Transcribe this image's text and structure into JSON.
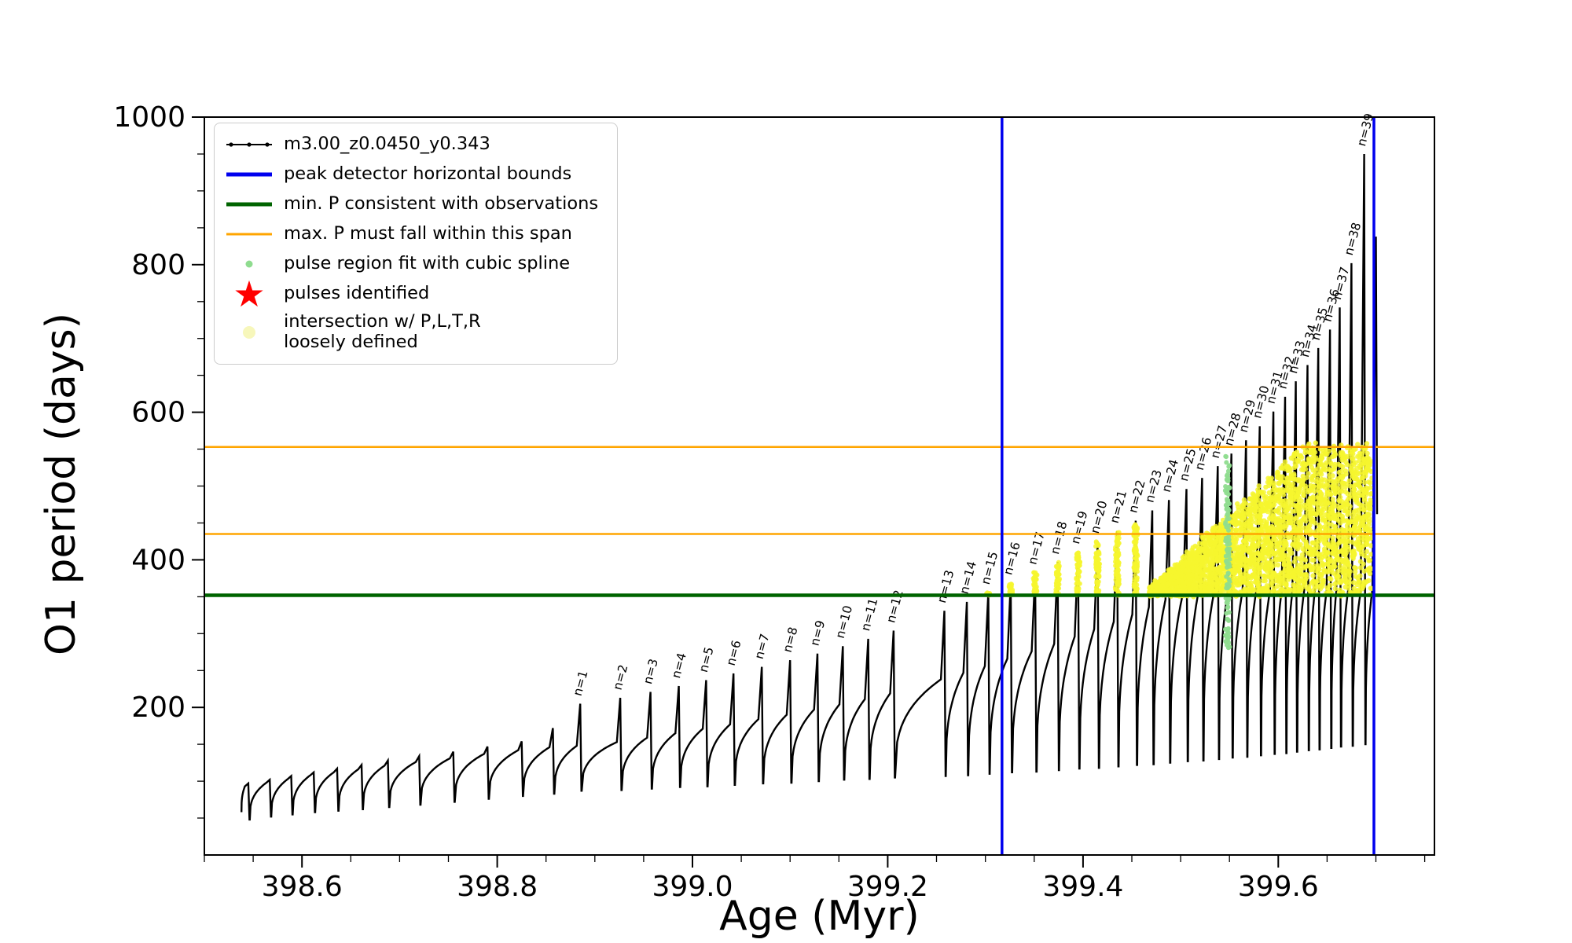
{
  "chart_data": {
    "type": "line",
    "title": "",
    "xlabel": "Age (Myr)",
    "ylabel": "O1 period (days)",
    "xlim": [
      398.5,
      399.76
    ],
    "ylim": [
      0,
      1000
    ],
    "xticks": [
      398.6,
      398.8,
      399.0,
      399.2,
      399.4,
      399.6
    ],
    "yticks": [
      200,
      400,
      600,
      800,
      1000
    ],
    "x_minor_step": 0.05,
    "y_minor_step": 50,
    "grid": false,
    "legend_position": "upper left",
    "colors": {
      "series": "#000000",
      "peak_bounds": "#0000ee",
      "min_p": "#006400",
      "max_p_span": "#ffa500",
      "spline_fit": "#8fdc8f",
      "pulses_star": "#ff0000",
      "intersection": "#f6f62e",
      "intersection_legend": "#f7f7bb"
    },
    "legend": [
      {
        "label": "m3.00_z0.0450_y0.343",
        "marker": "line-dot",
        "color": "#000000"
      },
      {
        "label": "peak detector horizontal bounds",
        "marker": "thick-line",
        "color": "#0000ee"
      },
      {
        "label": "min. P consistent with observations",
        "marker": "thick-line",
        "color": "#006400"
      },
      {
        "label": "max. P must fall within this span",
        "marker": "line",
        "color": "#ffa500"
      },
      {
        "label": "pulse region fit with cubic spline",
        "marker": "small-dot",
        "color": "#8fdc8f"
      },
      {
        "label": "pulses identified",
        "marker": "star",
        "color": "#ff0000"
      },
      {
        "label": "intersection w/ P,L,T,R\nloosely defined",
        "marker": "dot",
        "color": "#f7f7bb"
      }
    ],
    "vlines": [
      {
        "x": 399.317,
        "color": "#0000ee",
        "width": 3.5
      },
      {
        "x": 399.698,
        "color": "#0000ee",
        "width": 3.5
      }
    ],
    "hlines": [
      {
        "y": 352,
        "color": "#006400",
        "width": 4.5
      },
      {
        "y": 435,
        "color": "#ffa500",
        "width": 2.5
      },
      {
        "y": 553,
        "color": "#ffa500",
        "width": 2.5
      }
    ],
    "series_start": {
      "age": 398.538,
      "value": 58
    },
    "pulses": [
      {
        "label": null,
        "age": 398.545,
        "peak": 97,
        "hump": 93,
        "trough": 48
      },
      {
        "label": null,
        "age": 398.567,
        "peak": 102,
        "hump": 98,
        "trough": 52
      },
      {
        "label": null,
        "age": 398.589,
        "peak": 107,
        "hump": 103,
        "trough": 55
      },
      {
        "label": null,
        "age": 398.612,
        "peak": 112,
        "hump": 108,
        "trough": 58
      },
      {
        "label": null,
        "age": 398.636,
        "peak": 117,
        "hump": 112,
        "trough": 60
      },
      {
        "label": null,
        "age": 398.661,
        "peak": 122,
        "hump": 116,
        "trough": 62
      },
      {
        "label": null,
        "age": 398.688,
        "peak": 128,
        "hump": 121,
        "trough": 65
      },
      {
        "label": null,
        "age": 398.72,
        "peak": 134,
        "hump": 126,
        "trough": 68
      },
      {
        "label": null,
        "age": 398.755,
        "peak": 140,
        "hump": 131,
        "trough": 72
      },
      {
        "label": null,
        "age": 398.79,
        "peak": 147,
        "hump": 137,
        "trough": 76
      },
      {
        "label": null,
        "age": 398.825,
        "peak": 154,
        "hump": 142,
        "trough": 80
      },
      {
        "label": null,
        "age": 398.857,
        "peak": 172,
        "hump": 146,
        "trough": 83
      },
      {
        "label": "n=1",
        "age": 398.885,
        "peak": 205,
        "hump": 148,
        "trough": 87
      },
      {
        "label": "n=2",
        "age": 398.926,
        "peak": 213,
        "hump": 153,
        "trough": 88
      },
      {
        "label": "n=3",
        "age": 398.957,
        "peak": 221,
        "hump": 159,
        "trough": 90
      },
      {
        "label": "n=4",
        "age": 398.986,
        "peak": 229,
        "hump": 165,
        "trough": 92
      },
      {
        "label": "n=5",
        "age": 399.014,
        "peak": 237,
        "hump": 171,
        "trough": 93
      },
      {
        "label": "n=6",
        "age": 399.042,
        "peak": 246,
        "hump": 177,
        "trough": 95
      },
      {
        "label": "n=7",
        "age": 399.071,
        "peak": 255,
        "hump": 184,
        "trough": 97
      },
      {
        "label": "n=8",
        "age": 399.1,
        "peak": 264,
        "hump": 190,
        "trough": 98
      },
      {
        "label": "n=9",
        "age": 399.128,
        "peak": 273,
        "hump": 197,
        "trough": 100
      },
      {
        "label": "n=10",
        "age": 399.154,
        "peak": 283,
        "hump": 204,
        "trough": 102
      },
      {
        "label": "n=11",
        "age": 399.18,
        "peak": 293,
        "hump": 211,
        "trough": 103
      },
      {
        "label": "n=12",
        "age": 399.206,
        "peak": 304,
        "hump": 219,
        "trough": 105
      },
      {
        "label": "n=13",
        "age": 399.258,
        "peak": 331,
        "hump": 238,
        "trough": 107
      },
      {
        "label": "n=14",
        "age": 399.281,
        "peak": 343,
        "hump": 247,
        "trough": 108
      },
      {
        "label": "n=15",
        "age": 399.303,
        "peak": 356,
        "hump": 256,
        "trough": 110
      },
      {
        "label": "n=16",
        "age": 399.326,
        "peak": 369,
        "hump": 266,
        "trough": 112
      },
      {
        "label": "n=17",
        "age": 399.351,
        "peak": 383,
        "hump": 276,
        "trough": 113
      },
      {
        "label": "n=18",
        "age": 399.374,
        "peak": 397,
        "hump": 286,
        "trough": 115
      },
      {
        "label": "n=19",
        "age": 399.395,
        "peak": 411,
        "hump": 296,
        "trough": 117
      },
      {
        "label": "n=20",
        "age": 399.415,
        "peak": 425,
        "hump": 306,
        "trough": 118
      },
      {
        "label": "n=21",
        "age": 399.435,
        "peak": 439,
        "hump": 316,
        "trough": 120
      },
      {
        "label": "n=22",
        "age": 399.454,
        "peak": 453,
        "hump": 326,
        "trough": 122
      },
      {
        "label": "n=23",
        "age": 399.471,
        "peak": 467,
        "hump": 336,
        "trough": 123
      },
      {
        "label": "n=24",
        "age": 399.488,
        "peak": 481,
        "hump": 346,
        "trough": 125
      },
      {
        "label": "n=25",
        "age": 399.506,
        "peak": 496,
        "hump": 355,
        "trough": 127
      },
      {
        "label": "n=26",
        "age": 399.522,
        "peak": 511,
        "hump": 358,
        "trough": 128
      },
      {
        "label": "n=27",
        "age": 399.538,
        "peak": 527,
        "hump": 358,
        "trough": 130
      },
      {
        "label": "n=28",
        "age": 399.552,
        "peak": 544,
        "hump": 358,
        "trough": 132
      },
      {
        "label": "n=29",
        "age": 399.567,
        "peak": 562,
        "hump": 358,
        "trough": 133
      },
      {
        "label": "n=30",
        "age": 399.581,
        "peak": 581,
        "hump": 358,
        "trough": 135
      },
      {
        "label": "n=31",
        "age": 399.595,
        "peak": 601,
        "hump": 358,
        "trough": 137
      },
      {
        "label": "n=32",
        "age": 399.607,
        "peak": 621,
        "hump": 358,
        "trough": 138
      },
      {
        "label": "n=33",
        "age": 399.618,
        "peak": 642,
        "hump": 358,
        "trough": 140
      },
      {
        "label": "n=34",
        "age": 399.63,
        "peak": 664,
        "hump": 358,
        "trough": 142
      },
      {
        "label": "n=35",
        "age": 399.641,
        "peak": 687,
        "hump": 358,
        "trough": 143
      },
      {
        "label": "n=36",
        "age": 399.653,
        "peak": 712,
        "hump": 358,
        "trough": 145
      },
      {
        "label": "n=37",
        "age": 399.663,
        "peak": 742,
        "hump": 358,
        "trough": 147
      },
      {
        "label": "n=38",
        "age": 399.675,
        "peak": 802,
        "hump": 358,
        "trough": 148
      },
      {
        "label": "n=39",
        "age": 399.688,
        "peak": 950,
        "hump": 358,
        "trough": 150
      },
      {
        "label": null,
        "age": 399.7,
        "peak": 838,
        "hump": 360,
        "trough": 462
      }
    ],
    "intersection_region": {
      "age_start": 399.468,
      "age_end": 399.696,
      "y_bottom": 352,
      "y_top_start": 360,
      "y_top_end": 555,
      "ramp_end_age": 399.625
    },
    "spike_clusters": {
      "age_min": 399.3,
      "age_max": 399.468,
      "y_bottom": 352,
      "y_top_cap": 448
    },
    "spline_strip": {
      "age": 399.548,
      "y_min": 278,
      "y_max": 542
    }
  }
}
